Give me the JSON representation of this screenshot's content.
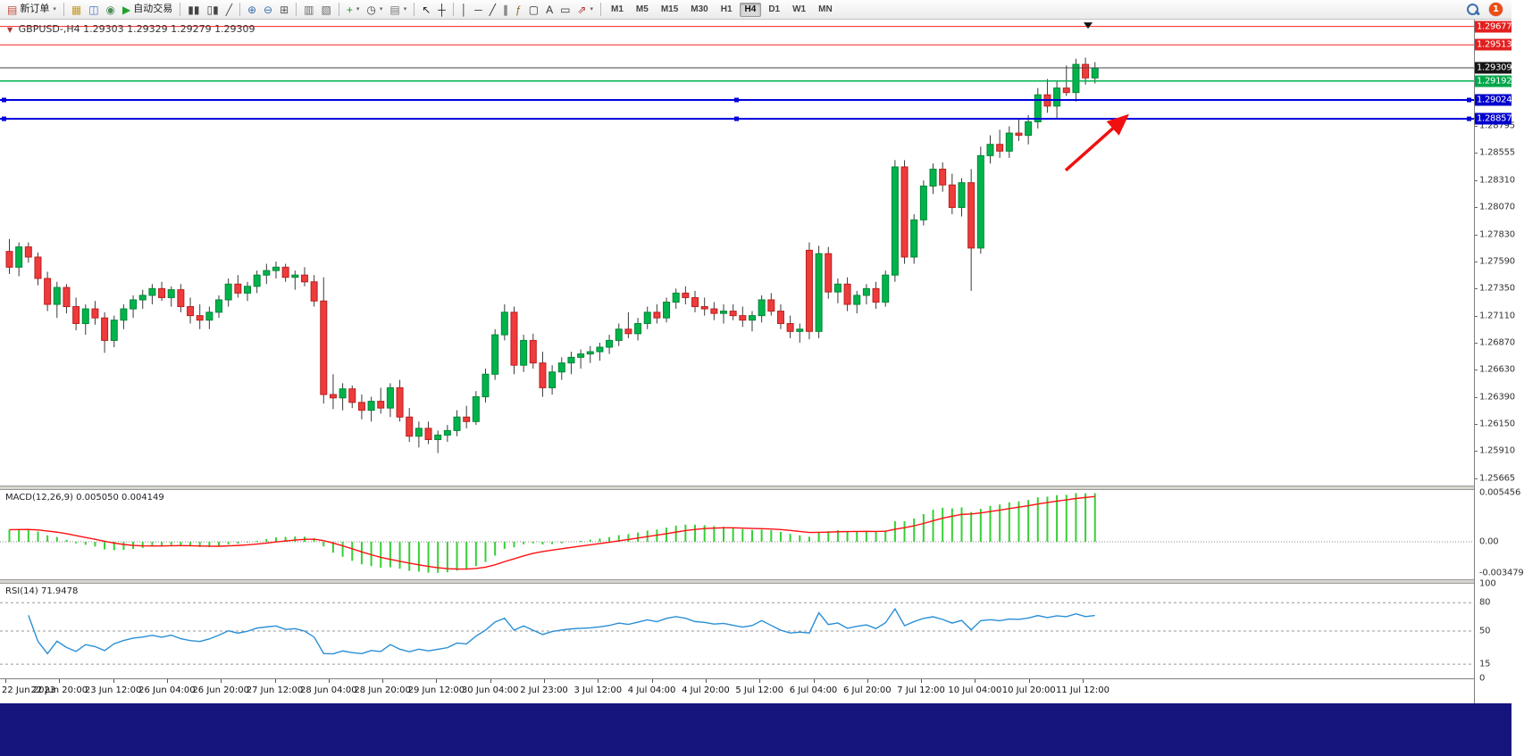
{
  "toolbar": {
    "notification_count": "1",
    "groups": [
      {
        "items": [
          {
            "name": "new-order-button",
            "glyph": "▤",
            "glyph_color": "#c04b3a",
            "label": "新订单",
            "caret": true
          }
        ]
      },
      {
        "items": [
          {
            "name": "profiles-button",
            "glyph": "▦",
            "glyph_color": "#c49a2a"
          },
          {
            "name": "data-window-button",
            "glyph": "◫",
            "glyph_color": "#4472c4"
          },
          {
            "name": "strategy-tester-button",
            "glyph": "◉",
            "glyph_color": "#4e8f5a"
          },
          {
            "name": "autotrading-button",
            "glyph": "▶",
            "glyph_color": "#1fa32b",
            "label": "自动交易"
          }
        ]
      },
      {
        "items": [
          {
            "name": "bar-chart-button",
            "glyph": "▮▮",
            "glyph_color": "#444"
          },
          {
            "name": "candlestick-chart-button",
            "glyph": "▯▮",
            "glyph_color": "#444"
          },
          {
            "name": "line-chart-button",
            "glyph": "╱",
            "glyph_color": "#444"
          }
        ]
      },
      {
        "items": [
          {
            "name": "zoom-in-button",
            "glyph": "⊕",
            "glyph_color": "#3a6fae"
          },
          {
            "name": "zoom-out-button",
            "glyph": "⊖",
            "glyph_color": "#3a6fae"
          },
          {
            "name": "tile-windows-button",
            "glyph": "⊞",
            "glyph_color": "#555"
          }
        ]
      },
      {
        "items": [
          {
            "name": "arrange-windows-button",
            "glyph": "▥",
            "glyph_color": "#666"
          },
          {
            "name": "cascade-windows-button",
            "glyph": "▧",
            "glyph_color": "#666"
          }
        ]
      },
      {
        "items": [
          {
            "name": "indicators-button",
            "glyph": "+",
            "glyph_color": "#18a018",
            "caret": true
          },
          {
            "name": "periods-button",
            "glyph": "◷",
            "glyph_color": "#444",
            "caret": true
          },
          {
            "name": "templates-button",
            "glyph": "▤",
            "glyph_color": "#777",
            "caret": true
          }
        ]
      },
      {
        "items": [
          {
            "name": "cursor-button",
            "glyph": "↖",
            "glyph_color": "#222"
          },
          {
            "name": "crosshair-button",
            "glyph": "┼",
            "glyph_color": "#222"
          }
        ]
      },
      {
        "items": [
          {
            "name": "vertical-line-button",
            "glyph": "│",
            "glyph_color": "#333"
          },
          {
            "name": "horizontal-line-button",
            "glyph": "─",
            "glyph_color": "#333"
          },
          {
            "name": "trendline-button",
            "glyph": "╱",
            "glyph_color": "#333"
          },
          {
            "name": "channel-button",
            "glyph": "∥",
            "glyph_color": "#333"
          },
          {
            "name": "fibonacci-button",
            "glyph": "ƒ",
            "glyph_color": "#8a6d2f"
          },
          {
            "name": "shapes-button",
            "glyph": "▢",
            "glyph_color": "#333"
          },
          {
            "name": "text-button",
            "glyph": "A",
            "glyph_color": "#333"
          },
          {
            "name": "text-label-button",
            "glyph": "▭",
            "glyph_color": "#333"
          },
          {
            "name": "arrows-button",
            "glyph": "⇗",
            "glyph_color": "#b03030",
            "caret": true
          }
        ]
      }
    ],
    "timeframes": [
      "M1",
      "M5",
      "M15",
      "M30",
      "H1",
      "H4",
      "D1",
      "W1",
      "MN"
    ],
    "active_timeframe": "H4"
  },
  "chart_header": {
    "symbol": "GBPUSD-,H4",
    "ohlc": "1.29303 1.29329 1.29279 1.29309"
  },
  "colors": {
    "candle_up": "#00b44c",
    "candle_up_border": "#008536",
    "candle_down": "#ee3b3b",
    "candle_down_border": "#bb2020",
    "wick": "#3a3a3a",
    "macd_hist": "#35d035",
    "macd_signal": "#ff1010",
    "rsi_line": "#2a8fd6",
    "level_dash": "#999999"
  },
  "chart_data": [
    {
      "type": "candlestick",
      "title": "GBPUSD-,H4",
      "ylim": [
        1.25602,
        1.29737
      ],
      "candles": [
        [
          1.2768,
          1.2779,
          1.2748,
          1.2754
        ],
        [
          1.2754,
          1.2776,
          1.2746,
          1.2772
        ],
        [
          1.2772,
          1.2776,
          1.2758,
          1.2763
        ],
        [
          1.2763,
          1.2767,
          1.2738,
          1.2744
        ],
        [
          1.2744,
          1.275,
          1.2715,
          1.2721
        ],
        [
          1.2721,
          1.2741,
          1.2709,
          1.2736
        ],
        [
          1.2736,
          1.2739,
          1.2713,
          1.2719
        ],
        [
          1.2719,
          1.2727,
          1.2698,
          1.2704
        ],
        [
          1.2704,
          1.2721,
          1.2694,
          1.2717
        ],
        [
          1.2717,
          1.2724,
          1.2703,
          1.2709
        ],
        [
          1.2709,
          1.2714,
          1.2678,
          1.2689
        ],
        [
          1.2689,
          1.2711,
          1.2683,
          1.2707
        ],
        [
          1.2707,
          1.2721,
          1.2699,
          1.2717
        ],
        [
          1.2717,
          1.2729,
          1.2709,
          1.2725
        ],
        [
          1.2725,
          1.2734,
          1.2717,
          1.2729
        ],
        [
          1.2729,
          1.2739,
          1.2721,
          1.2735
        ],
        [
          1.2735,
          1.2741,
          1.2724,
          1.2727
        ],
        [
          1.2727,
          1.2737,
          1.2719,
          1.2734
        ],
        [
          1.2734,
          1.2739,
          1.2714,
          1.2719
        ],
        [
          1.2719,
          1.2727,
          1.2704,
          1.2711
        ],
        [
          1.2711,
          1.2721,
          1.2699,
          1.2707
        ],
        [
          1.2707,
          1.2719,
          1.2699,
          1.2714
        ],
        [
          1.2714,
          1.2729,
          1.2709,
          1.2725
        ],
        [
          1.2725,
          1.2744,
          1.2719,
          1.2739
        ],
        [
          1.2739,
          1.2747,
          1.2727,
          1.2731
        ],
        [
          1.2731,
          1.2741,
          1.2724,
          1.2737
        ],
        [
          1.2737,
          1.2751,
          1.2731,
          1.2747
        ],
        [
          1.2747,
          1.2757,
          1.2739,
          1.2751
        ],
        [
          1.2751,
          1.2759,
          1.2744,
          1.2754
        ],
        [
          1.2754,
          1.2757,
          1.2741,
          1.2745
        ],
        [
          1.2745,
          1.2751,
          1.2734,
          1.2747
        ],
        [
          1.2747,
          1.2754,
          1.2737,
          1.2741
        ],
        [
          1.2741,
          1.2747,
          1.2719,
          1.2724
        ],
        [
          1.2724,
          1.2745,
          1.2633,
          1.2641
        ],
        [
          1.2641,
          1.2659,
          1.2628,
          1.2638
        ],
        [
          1.2638,
          1.2651,
          1.2627,
          1.2646
        ],
        [
          1.2646,
          1.2649,
          1.2629,
          1.2634
        ],
        [
          1.2634,
          1.2641,
          1.2619,
          1.2627
        ],
        [
          1.2627,
          1.2639,
          1.2617,
          1.2635
        ],
        [
          1.2635,
          1.2647,
          1.2624,
          1.2629
        ],
        [
          1.2629,
          1.2651,
          1.2621,
          1.2647
        ],
        [
          1.2647,
          1.2654,
          1.2617,
          1.2621
        ],
        [
          1.2621,
          1.2629,
          1.2599,
          1.2604
        ],
        [
          1.2604,
          1.2617,
          1.2594,
          1.2611
        ],
        [
          1.2611,
          1.2617,
          1.2597,
          1.2601
        ],
        [
          1.2601,
          1.2609,
          1.2589,
          1.2605
        ],
        [
          1.2605,
          1.2614,
          1.2599,
          1.2609
        ],
        [
          1.2609,
          1.2627,
          1.2604,
          1.2621
        ],
        [
          1.2621,
          1.2631,
          1.2611,
          1.2617
        ],
        [
          1.2617,
          1.2644,
          1.2614,
          1.2639
        ],
        [
          1.2639,
          1.2664,
          1.2634,
          1.2659
        ],
        [
          1.2659,
          1.2699,
          1.2654,
          1.2694
        ],
        [
          1.2694,
          1.2721,
          1.2689,
          1.2714
        ],
        [
          1.2714,
          1.2719,
          1.2659,
          1.2667
        ],
        [
          1.2667,
          1.2694,
          1.2661,
          1.2689
        ],
        [
          1.2689,
          1.2695,
          1.2664,
          1.2669
        ],
        [
          1.2669,
          1.2679,
          1.2639,
          1.2647
        ],
        [
          1.2647,
          1.2667,
          1.2641,
          1.2661
        ],
        [
          1.2661,
          1.2674,
          1.2654,
          1.2669
        ],
        [
          1.2669,
          1.2679,
          1.2659,
          1.2674
        ],
        [
          1.2674,
          1.2681,
          1.2664,
          1.2677
        ],
        [
          1.2677,
          1.2684,
          1.2669,
          1.2679
        ],
        [
          1.2679,
          1.2687,
          1.2671,
          1.2683
        ],
        [
          1.2683,
          1.2694,
          1.2677,
          1.2689
        ],
        [
          1.2689,
          1.2704,
          1.2684,
          1.2699
        ],
        [
          1.2699,
          1.2714,
          1.2691,
          1.2695
        ],
        [
          1.2695,
          1.2709,
          1.2689,
          1.2704
        ],
        [
          1.2704,
          1.2719,
          1.2699,
          1.2714
        ],
        [
          1.2714,
          1.2721,
          1.2704,
          1.2709
        ],
        [
          1.2709,
          1.2727,
          1.2705,
          1.2723
        ],
        [
          1.2723,
          1.2735,
          1.2717,
          1.2731
        ],
        [
          1.2731,
          1.2737,
          1.2721,
          1.2727
        ],
        [
          1.2727,
          1.2733,
          1.2714,
          1.2719
        ],
        [
          1.2719,
          1.2727,
          1.2711,
          1.2717
        ],
        [
          1.2717,
          1.2723,
          1.2707,
          1.2713
        ],
        [
          1.2713,
          1.2721,
          1.2704,
          1.2715
        ],
        [
          1.2715,
          1.2721,
          1.2707,
          1.2711
        ],
        [
          1.2711,
          1.2719,
          1.2701,
          1.2707
        ],
        [
          1.2707,
          1.2715,
          1.2697,
          1.2711
        ],
        [
          1.2711,
          1.2729,
          1.2705,
          1.2725
        ],
        [
          1.2725,
          1.2731,
          1.2711,
          1.2715
        ],
        [
          1.2715,
          1.2721,
          1.2699,
          1.2704
        ],
        [
          1.2704,
          1.2711,
          1.2691,
          1.2697
        ],
        [
          1.2697,
          1.2704,
          1.2687,
          1.2699
        ],
        [
          1.2769,
          1.2776,
          1.269,
          1.2697
        ],
        [
          1.2697,
          1.2773,
          1.2691,
          1.2766
        ],
        [
          1.2766,
          1.2772,
          1.2726,
          1.2732
        ],
        [
          1.2732,
          1.2744,
          1.2722,
          1.2739
        ],
        [
          1.2739,
          1.2745,
          1.2715,
          1.2721
        ],
        [
          1.2721,
          1.2733,
          1.2713,
          1.2729
        ],
        [
          1.2729,
          1.2739,
          1.2721,
          1.2735
        ],
        [
          1.2735,
          1.2741,
          1.2717,
          1.2723
        ],
        [
          1.2723,
          1.2751,
          1.2719,
          1.2747
        ],
        [
          1.2747,
          1.2849,
          1.2741,
          1.2843
        ],
        [
          1.2843,
          1.2849,
          1.2757,
          1.2763
        ],
        [
          1.2763,
          1.2801,
          1.2757,
          1.2796
        ],
        [
          1.2796,
          1.2831,
          1.2791,
          1.2826
        ],
        [
          1.2826,
          1.2846,
          1.2819,
          1.2841
        ],
        [
          1.2841,
          1.2847,
          1.2821,
          1.2827
        ],
        [
          1.2827,
          1.2837,
          1.2801,
          1.2807
        ],
        [
          1.2807,
          1.2833,
          1.2799,
          1.2829
        ],
        [
          1.2829,
          1.2841,
          1.2733,
          1.2771
        ],
        [
          1.2771,
          1.2861,
          1.2766,
          1.2853
        ],
        [
          1.2853,
          1.2871,
          1.2846,
          1.2863
        ],
        [
          1.2863,
          1.2876,
          1.2851,
          1.2857
        ],
        [
          1.2857,
          1.2879,
          1.2851,
          1.2873
        ],
        [
          1.2873,
          1.2886,
          1.2866,
          1.2871
        ],
        [
          1.2871,
          1.2889,
          1.2863,
          1.2883
        ],
        [
          1.2883,
          1.2913,
          1.2877,
          1.2907
        ],
        [
          1.2907,
          1.2921,
          1.2891,
          1.2897
        ],
        [
          1.2897,
          1.2919,
          1.2886,
          1.2913
        ],
        [
          1.2913,
          1.2933,
          1.2906,
          1.2909
        ],
        [
          1.2909,
          1.2939,
          1.2901,
          1.2934
        ],
        [
          1.2934,
          1.294,
          1.2916,
          1.2922
        ],
        [
          1.2922,
          1.2936,
          1.2917,
          1.29309
        ]
      ],
      "price_axis": {
        "plain_labels": [
          "1.28795",
          "1.28555",
          "1.28310",
          "1.28070",
          "1.27830",
          "1.27590",
          "1.27350",
          "1.27110",
          "1.26870",
          "1.26630",
          "1.26390",
          "1.26150",
          "1.25910",
          "1.25665"
        ],
        "tagged_labels": [
          {
            "text": "1.29677",
            "price": 1.29677,
            "bg": "#e21f1f"
          },
          {
            "text": "1.29513",
            "price": 1.29513,
            "bg": "#e21f1f"
          },
          {
            "text": "1.29309",
            "price": 1.29309,
            "bg": "#151515"
          },
          {
            "text": "1.29192",
            "price": 1.29192,
            "bg": "#00a64a"
          },
          {
            "text": "1.29024",
            "price": 1.29024,
            "bg": "#0000cc"
          },
          {
            "text": "1.28857",
            "price": 1.28857,
            "bg": "#0000cc"
          }
        ]
      },
      "time_axis": [
        "22 Jun 2023",
        "22 Jun 20:00",
        "23 Jun 12:00",
        "26 Jun 04:00",
        "26 Jun 20:00",
        "27 Jun 12:00",
        "28 Jun 04:00",
        "28 Jun 20:00",
        "29 Jun 12:00",
        "30 Jun 04:00",
        "2 Jul 23:00",
        "3 Jul 12:00",
        "4 Jul 04:00",
        "4 Jul 20:00",
        "5 Jul 12:00",
        "6 Jul 04:00",
        "6 Jul 20:00",
        "7 Jul 12:00",
        "10 Jul 04:00",
        "10 Jul 20:00",
        "11 Jul 12:00"
      ],
      "objects": {
        "hlines": [
          {
            "price": 1.29677,
            "color": "#ff2222",
            "width": 1
          },
          {
            "price": 1.29513,
            "color": "#ff2222",
            "width": 1
          },
          {
            "price": 1.29309,
            "color": "#454545",
            "width": 1
          },
          {
            "price": 1.29192,
            "color": "#00b050",
            "width": 1.5
          },
          {
            "price": 1.29024,
            "color": "#0000dd",
            "width": 2,
            "handles": true
          },
          {
            "price": 1.28857,
            "color": "#0000dd",
            "width": 2,
            "handles": true
          }
        ],
        "arrow": {
          "x1": 1193,
          "price1": 1.284,
          "x2": 1260,
          "price2": 1.28872,
          "color": "#f01010"
        },
        "top_marker": {
          "x": 1218,
          "price": 1.29712,
          "color": "#111111"
        }
      }
    },
    {
      "type": "bar",
      "display_name": "MACD(12,26,9)",
      "value_main": "0.005050",
      "value_signal": "0.004149",
      "axis_labels": [
        {
          "text": "0.005456",
          "value": 0.005456
        },
        {
          "text": "0.00",
          "value": 0
        },
        {
          "text": "-0.003479",
          "value": -0.003479
        }
      ],
      "ylim": [
        -0.0042,
        0.0058
      ],
      "hist_max": 0.005456,
      "hist_min": -0.003479
    },
    {
      "type": "line",
      "display_name": "RSI(14)",
      "value": "71.9478",
      "axis_labels": [
        {
          "text": "100",
          "value": 100
        },
        {
          "text": "80",
          "value": 80
        },
        {
          "text": "50",
          "value": 50
        },
        {
          "text": "15",
          "value": 15
        },
        {
          "text": "0",
          "value": 0
        }
      ],
      "levels": [
        80,
        50,
        15
      ],
      "ylim": [
        0,
        100
      ]
    }
  ]
}
